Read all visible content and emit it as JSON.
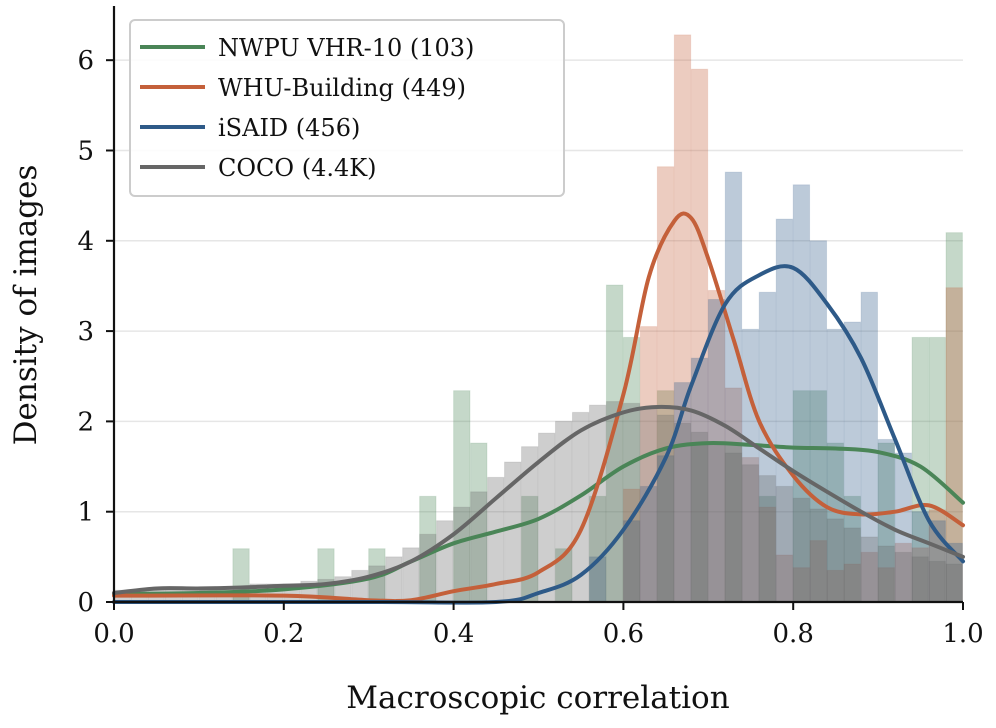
{
  "chart_data": {
    "type": "histogram",
    "title": "",
    "xlabel": "Macroscopic correlation",
    "ylabel": "Density of images",
    "xlim": [
      0.0,
      1.0
    ],
    "ylim": [
      0,
      6.6
    ],
    "xticks": [
      "0.0",
      "0.2",
      "0.4",
      "0.6",
      "0.8",
      "1.0"
    ],
    "yticks": [
      "0",
      "1",
      "2",
      "3",
      "4",
      "5",
      "6"
    ],
    "grid": "horizontal",
    "legend_position": "top-left",
    "bin_width": 0.02,
    "series": [
      {
        "name": "NWPU VHR-10 (103)",
        "color": "#4a8557",
        "hist": [
          [
            0.15,
            0.59
          ],
          [
            0.25,
            0.59
          ],
          [
            0.31,
            0.59
          ],
          [
            0.37,
            1.17
          ],
          [
            0.41,
            2.34
          ],
          [
            0.43,
            1.76
          ],
          [
            0.49,
            1.17
          ],
          [
            0.53,
            0.59
          ],
          [
            0.57,
            1.17
          ],
          [
            0.59,
            3.51
          ],
          [
            0.61,
            2.93
          ],
          [
            0.65,
            2.34
          ],
          [
            0.69,
            1.76
          ],
          [
            0.73,
            1.76
          ],
          [
            0.77,
            1.17
          ],
          [
            0.81,
            2.34
          ],
          [
            0.83,
            2.34
          ],
          [
            0.85,
            1.76
          ],
          [
            0.87,
            1.17
          ],
          [
            0.91,
            1.76
          ],
          [
            0.95,
            2.93
          ],
          [
            0.97,
            2.93
          ],
          [
            0.99,
            4.09
          ]
        ],
        "kde": [
          [
            0.0,
            0.09
          ],
          [
            0.1,
            0.1
          ],
          [
            0.2,
            0.14
          ],
          [
            0.3,
            0.26
          ],
          [
            0.35,
            0.45
          ],
          [
            0.4,
            0.65
          ],
          [
            0.45,
            0.78
          ],
          [
            0.5,
            0.92
          ],
          [
            0.55,
            1.18
          ],
          [
            0.6,
            1.5
          ],
          [
            0.65,
            1.7
          ],
          [
            0.7,
            1.76
          ],
          [
            0.75,
            1.74
          ],
          [
            0.8,
            1.71
          ],
          [
            0.85,
            1.7
          ],
          [
            0.9,
            1.66
          ],
          [
            0.95,
            1.5
          ],
          [
            1.0,
            1.1
          ]
        ]
      },
      {
        "name": "WHU-Building (449)",
        "color": "#c4603a",
        "hist": [
          [
            0.61,
            1.25
          ],
          [
            0.63,
            3.05
          ],
          [
            0.65,
            4.82
          ],
          [
            0.67,
            6.28
          ],
          [
            0.69,
            5.9
          ],
          [
            0.71,
            3.45
          ],
          [
            0.73,
            2.37
          ],
          [
            0.75,
            1.6
          ],
          [
            0.77,
            1.05
          ],
          [
            0.79,
            0.52
          ],
          [
            0.81,
            0.38
          ],
          [
            0.83,
            0.68
          ],
          [
            0.85,
            0.35
          ],
          [
            0.87,
            0.42
          ],
          [
            0.89,
            0.55
          ],
          [
            0.91,
            0.38
          ],
          [
            0.93,
            0.65
          ],
          [
            0.95,
            0.6
          ],
          [
            0.97,
            1.02
          ],
          [
            0.99,
            3.48
          ]
        ],
        "kde": [
          [
            0.0,
            0.07
          ],
          [
            0.2,
            0.07
          ],
          [
            0.3,
            0.02
          ],
          [
            0.35,
            0.02
          ],
          [
            0.4,
            0.12
          ],
          [
            0.45,
            0.2
          ],
          [
            0.5,
            0.33
          ],
          [
            0.55,
            0.8
          ],
          [
            0.6,
            2.3
          ],
          [
            0.63,
            3.6
          ],
          [
            0.66,
            4.22
          ],
          [
            0.68,
            4.25
          ],
          [
            0.7,
            3.8
          ],
          [
            0.73,
            2.9
          ],
          [
            0.76,
            2.0
          ],
          [
            0.8,
            1.4
          ],
          [
            0.84,
            1.05
          ],
          [
            0.88,
            0.97
          ],
          [
            0.92,
            1.0
          ],
          [
            0.96,
            1.07
          ],
          [
            1.0,
            0.85
          ]
        ]
      },
      {
        "name": "iSAID (456)",
        "color": "#2e5a88",
        "hist": [
          [
            0.57,
            0.5
          ],
          [
            0.61,
            0.9
          ],
          [
            0.63,
            1.28
          ],
          [
            0.65,
            1.62
          ],
          [
            0.67,
            2.43
          ],
          [
            0.69,
            2.7
          ],
          [
            0.71,
            3.35
          ],
          [
            0.73,
            4.76
          ],
          [
            0.75,
            3.02
          ],
          [
            0.77,
            3.43
          ],
          [
            0.79,
            4.24
          ],
          [
            0.81,
            4.62
          ],
          [
            0.83,
            4.0
          ],
          [
            0.85,
            3.02
          ],
          [
            0.87,
            3.1
          ],
          [
            0.89,
            3.43
          ],
          [
            0.91,
            1.8
          ],
          [
            0.93,
            1.65
          ],
          [
            0.95,
            1.0
          ],
          [
            0.97,
            0.9
          ],
          [
            0.99,
            0.65
          ]
        ],
        "kde": [
          [
            0.0,
            0.0
          ],
          [
            0.3,
            0.0
          ],
          [
            0.45,
            0.0
          ],
          [
            0.5,
            0.1
          ],
          [
            0.55,
            0.3
          ],
          [
            0.6,
            0.8
          ],
          [
            0.65,
            1.6
          ],
          [
            0.68,
            2.4
          ],
          [
            0.72,
            3.3
          ],
          [
            0.76,
            3.62
          ],
          [
            0.8,
            3.7
          ],
          [
            0.84,
            3.3
          ],
          [
            0.88,
            2.7
          ],
          [
            0.92,
            1.8
          ],
          [
            0.96,
            0.9
          ],
          [
            1.0,
            0.45
          ]
        ]
      },
      {
        "name": "COCO (4.4K)",
        "color": "#666666",
        "hist": [
          [
            0.01,
            0.13
          ],
          [
            0.03,
            0.13
          ],
          [
            0.05,
            0.13
          ],
          [
            0.07,
            0.15
          ],
          [
            0.09,
            0.15
          ],
          [
            0.11,
            0.17
          ],
          [
            0.13,
            0.15
          ],
          [
            0.15,
            0.17
          ],
          [
            0.17,
            0.2
          ],
          [
            0.19,
            0.2
          ],
          [
            0.21,
            0.2
          ],
          [
            0.23,
            0.23
          ],
          [
            0.25,
            0.25
          ],
          [
            0.27,
            0.28
          ],
          [
            0.29,
            0.35
          ],
          [
            0.31,
            0.4
          ],
          [
            0.33,
            0.5
          ],
          [
            0.35,
            0.6
          ],
          [
            0.37,
            0.75
          ],
          [
            0.39,
            0.9
          ],
          [
            0.41,
            1.05
          ],
          [
            0.43,
            1.22
          ],
          [
            0.45,
            1.38
          ],
          [
            0.47,
            1.55
          ],
          [
            0.49,
            1.72
          ],
          [
            0.51,
            1.87
          ],
          [
            0.53,
            2.0
          ],
          [
            0.55,
            2.1
          ],
          [
            0.57,
            2.18
          ],
          [
            0.59,
            2.22
          ],
          [
            0.61,
            2.2
          ],
          [
            0.63,
            2.15
          ],
          [
            0.65,
            2.07
          ],
          [
            0.67,
            1.98
          ],
          [
            0.69,
            1.88
          ],
          [
            0.71,
            1.77
          ],
          [
            0.73,
            1.65
          ],
          [
            0.75,
            1.52
          ],
          [
            0.77,
            1.4
          ],
          [
            0.79,
            1.28
          ],
          [
            0.81,
            1.15
          ],
          [
            0.83,
            1.03
          ],
          [
            0.85,
            0.92
          ],
          [
            0.87,
            0.82
          ],
          [
            0.89,
            0.72
          ],
          [
            0.91,
            0.62
          ],
          [
            0.93,
            0.55
          ],
          [
            0.95,
            0.5
          ],
          [
            0.97,
            0.45
          ],
          [
            0.99,
            0.42
          ]
        ],
        "kde": [
          [
            0.0,
            0.1
          ],
          [
            0.05,
            0.15
          ],
          [
            0.1,
            0.15
          ],
          [
            0.15,
            0.16
          ],
          [
            0.2,
            0.18
          ],
          [
            0.25,
            0.2
          ],
          [
            0.3,
            0.28
          ],
          [
            0.35,
            0.45
          ],
          [
            0.4,
            0.75
          ],
          [
            0.45,
            1.15
          ],
          [
            0.5,
            1.55
          ],
          [
            0.55,
            1.9
          ],
          [
            0.6,
            2.1
          ],
          [
            0.64,
            2.16
          ],
          [
            0.68,
            2.12
          ],
          [
            0.72,
            1.95
          ],
          [
            0.76,
            1.7
          ],
          [
            0.8,
            1.45
          ],
          [
            0.84,
            1.22
          ],
          [
            0.88,
            1.0
          ],
          [
            0.92,
            0.8
          ],
          [
            0.96,
            0.65
          ],
          [
            1.0,
            0.5
          ]
        ]
      }
    ]
  }
}
